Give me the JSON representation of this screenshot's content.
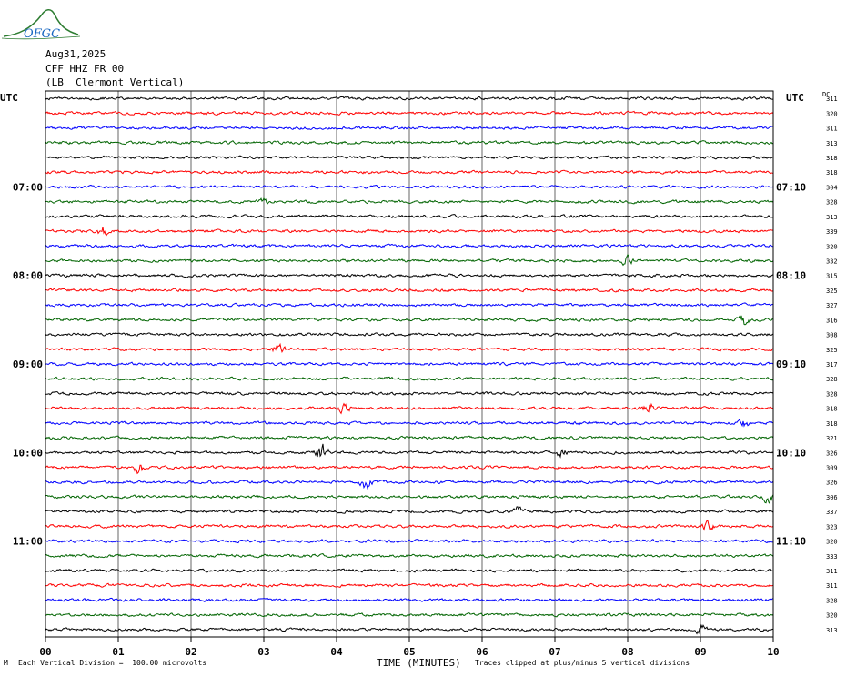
{
  "header": {
    "logo_text": "OFGC",
    "date": "Aug31,2025",
    "station": "CFF HHZ FR 00",
    "location": "(LB  Clermont Vertical)"
  },
  "axes": {
    "left_utc_label": "UTC",
    "right_utc_label": "UTC",
    "dc_label": "DC",
    "x_label": "TIME (MINUTES)"
  },
  "footer": {
    "left_mark": "M",
    "scale_note": "Each Vertical Division =  100.00 microvolts",
    "clip_note": "Traces clipped at plus/minus 5 vertical divisions"
  },
  "colors": {
    "trace_cycle": [
      "#000000",
      "#ff0000",
      "#0000ff",
      "#006400"
    ],
    "grid": "#000000",
    "logo": "#2e7d32",
    "logo_text": "#1565c0"
  },
  "chart_data": {
    "type": "line",
    "title": "",
    "xlabel": "TIME (MINUTES)",
    "ylabel": "UTC",
    "x_ticks": [
      "00",
      "01",
      "02",
      "03",
      "04",
      "05",
      "06",
      "07",
      "08",
      "09",
      "10"
    ],
    "xlim": [
      0,
      10
    ],
    "grid": true,
    "left_time_labels": [
      {
        "row": 6,
        "label": "07:00"
      },
      {
        "row": 12,
        "label": "08:00"
      },
      {
        "row": 18,
        "label": "09:00"
      },
      {
        "row": 24,
        "label": "10:00"
      },
      {
        "row": 30,
        "label": "11:00"
      }
    ],
    "right_time_labels": [
      {
        "row": 6,
        "label": "07:10"
      },
      {
        "row": 12,
        "label": "08:10"
      },
      {
        "row": 18,
        "label": "09:10"
      },
      {
        "row": 24,
        "label": "10:10"
      },
      {
        "row": 30,
        "label": "11:10"
      }
    ],
    "dc_offsets": [
      "311",
      "320",
      "311",
      "313",
      "318",
      "318",
      "304",
      "328",
      "313",
      "339",
      "320",
      "332",
      "315",
      "325",
      "327",
      "316",
      "308",
      "325",
      "317",
      "328",
      "328",
      "318",
      "318",
      "321",
      "326",
      "309",
      "326",
      "306",
      "337",
      "323",
      "320",
      "333",
      "311",
      "311",
      "328",
      "320",
      "313"
    ],
    "trace_count": 37,
    "events": [
      {
        "row": 7,
        "minute": 3.0,
        "amp": 2.0
      },
      {
        "row": 9,
        "minute": 0.8,
        "amp": 2.0
      },
      {
        "row": 11,
        "minute": 8.0,
        "amp": 2.0
      },
      {
        "row": 15,
        "minute": 9.6,
        "amp": 2.5
      },
      {
        "row": 17,
        "minute": 3.2,
        "amp": 1.8
      },
      {
        "row": 21,
        "minute": 8.3,
        "amp": 2.5
      },
      {
        "row": 21,
        "minute": 4.1,
        "amp": 1.6
      },
      {
        "row": 22,
        "minute": 9.6,
        "amp": 1.8
      },
      {
        "row": 24,
        "minute": 3.8,
        "amp": 4.0
      },
      {
        "row": 24,
        "minute": 7.1,
        "amp": 2.0
      },
      {
        "row": 25,
        "minute": 1.3,
        "amp": 3.0
      },
      {
        "row": 26,
        "minute": 4.4,
        "amp": 2.5
      },
      {
        "row": 27,
        "minute": 9.95,
        "amp": 3.0
      },
      {
        "row": 28,
        "minute": 6.5,
        "amp": 2.0
      },
      {
        "row": 29,
        "minute": 9.1,
        "amp": 1.8
      },
      {
        "row": 36,
        "minute": 9.0,
        "amp": 1.8
      }
    ]
  }
}
